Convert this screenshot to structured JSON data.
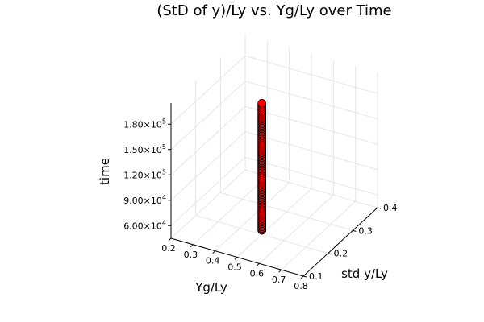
{
  "chart_data": {
    "type": "scatter3d",
    "title": "(StD of y)/Ly vs. Yg/Ly over Time",
    "xlabel": "Yg/Ly",
    "ylabel": "std y/Ly",
    "zlabel": "time",
    "xlim": [
      0.2,
      0.8
    ],
    "ylim": [
      0.1,
      0.4
    ],
    "zlim": [
      45000,
      205000
    ],
    "xticks": [
      "0.2",
      "0.3",
      "0.4",
      "0.5",
      "0.6",
      "0.7",
      "0.8"
    ],
    "yticks": [
      "0.1",
      "0.2",
      "0.3",
      "0.4"
    ],
    "zticks": [
      {
        "value": 60000,
        "mantissa": "6.00",
        "exp": "4"
      },
      {
        "value": 90000,
        "mantissa": "9.00",
        "exp": "4"
      },
      {
        "value": 120000,
        "mantissa": "1.20",
        "exp": "5"
      },
      {
        "value": 150000,
        "mantissa": "1.50",
        "exp": "5"
      },
      {
        "value": 180000,
        "mantissa": "1.80",
        "exp": "5"
      }
    ],
    "grid": true,
    "series": [
      {
        "color": "#ff0000",
        "points": [
          [
            0.5,
            0.2,
            50000
          ],
          [
            0.5,
            0.2,
            52000
          ],
          [
            0.5,
            0.2,
            54000
          ],
          [
            0.5,
            0.2,
            56000
          ],
          [
            0.5,
            0.2,
            58000
          ],
          [
            0.5,
            0.2,
            60000
          ],
          [
            0.5,
            0.2,
            62000
          ],
          [
            0.5,
            0.2,
            64000
          ],
          [
            0.5,
            0.2,
            66000
          ],
          [
            0.5,
            0.2,
            68000
          ],
          [
            0.5,
            0.2,
            70000
          ],
          [
            0.5,
            0.2,
            72000
          ],
          [
            0.5,
            0.2,
            74000
          ],
          [
            0.5,
            0.2,
            76000
          ],
          [
            0.5,
            0.2,
            78000
          ],
          [
            0.5,
            0.2,
            80000
          ],
          [
            0.5,
            0.2,
            82000
          ],
          [
            0.5,
            0.2,
            84000
          ],
          [
            0.5,
            0.2,
            86000
          ],
          [
            0.5,
            0.2,
            88000
          ],
          [
            0.5,
            0.2,
            90000
          ],
          [
            0.5,
            0.2,
            92000
          ],
          [
            0.5,
            0.2,
            94000
          ],
          [
            0.5,
            0.2,
            96000
          ],
          [
            0.5,
            0.2,
            98000
          ],
          [
            0.5,
            0.2,
            100000
          ],
          [
            0.5,
            0.2,
            102000
          ],
          [
            0.5,
            0.2,
            104000
          ],
          [
            0.5,
            0.2,
            106000
          ],
          [
            0.5,
            0.2,
            108000
          ],
          [
            0.5,
            0.2,
            110000
          ],
          [
            0.5,
            0.2,
            112000
          ],
          [
            0.5,
            0.2,
            114000
          ],
          [
            0.5,
            0.2,
            116000
          ],
          [
            0.5,
            0.2,
            118000
          ],
          [
            0.5,
            0.2,
            120000
          ],
          [
            0.5,
            0.2,
            122000
          ],
          [
            0.5,
            0.2,
            124000
          ],
          [
            0.5,
            0.2,
            126000
          ],
          [
            0.5,
            0.2,
            128000
          ],
          [
            0.5,
            0.2,
            130000
          ],
          [
            0.5,
            0.2,
            132000
          ],
          [
            0.5,
            0.2,
            134000
          ],
          [
            0.5,
            0.2,
            136000
          ],
          [
            0.5,
            0.2,
            138000
          ],
          [
            0.5,
            0.2,
            140000
          ],
          [
            0.5,
            0.2,
            142000
          ],
          [
            0.5,
            0.2,
            144000
          ],
          [
            0.5,
            0.2,
            146000
          ],
          [
            0.5,
            0.2,
            148000
          ],
          [
            0.5,
            0.2,
            150000
          ],
          [
            0.5,
            0.2,
            152000
          ],
          [
            0.5,
            0.2,
            154000
          ],
          [
            0.5,
            0.2,
            156000
          ],
          [
            0.5,
            0.2,
            158000
          ],
          [
            0.5,
            0.2,
            160000
          ],
          [
            0.5,
            0.2,
            162000
          ],
          [
            0.5,
            0.2,
            164000
          ],
          [
            0.5,
            0.2,
            166000
          ],
          [
            0.5,
            0.2,
            168000
          ],
          [
            0.5,
            0.2,
            170000
          ],
          [
            0.5,
            0.2,
            172000
          ],
          [
            0.5,
            0.2,
            174000
          ],
          [
            0.5,
            0.2,
            176000
          ],
          [
            0.5,
            0.2,
            178000
          ],
          [
            0.5,
            0.2,
            180000
          ],
          [
            0.5,
            0.2,
            182000
          ],
          [
            0.5,
            0.2,
            184000
          ],
          [
            0.5,
            0.2,
            186000
          ],
          [
            0.5,
            0.2,
            188000
          ],
          [
            0.5,
            0.2,
            190000
          ],
          [
            0.5,
            0.2,
            192000
          ],
          [
            0.5,
            0.2,
            194000
          ],
          [
            0.5,
            0.2,
            196000
          ],
          [
            0.5,
            0.2,
            198000
          ],
          [
            0.5,
            0.2,
            200000
          ]
        ]
      }
    ]
  }
}
